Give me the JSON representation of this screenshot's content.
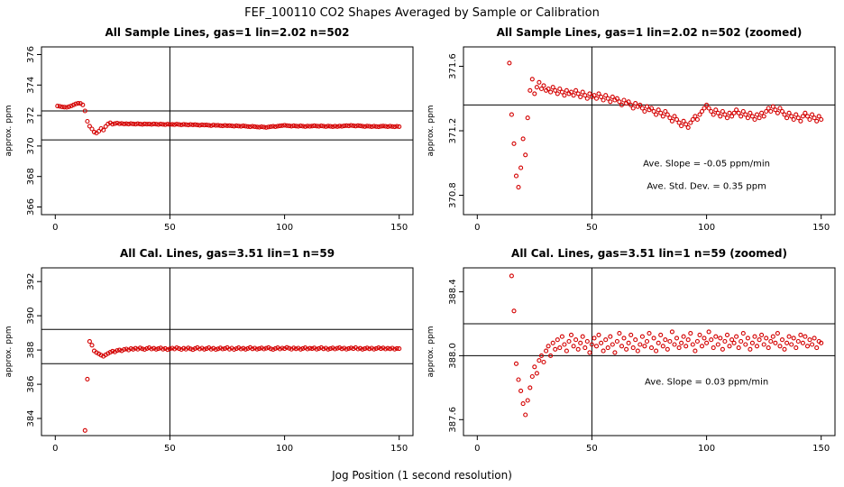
{
  "page": {
    "title": "FEF_100110  CO2 Shapes Averaged by Sample or Calibration",
    "xlabel": "Jog Position (1 second resolution)"
  },
  "marker_color": "#d40000",
  "axis_color": "#000000",
  "chart_data": [
    {
      "type": "scatter",
      "title": "All Sample Lines, gas=1 lin=2.02 n=502",
      "ylabel": "approx. ppm",
      "series_ref": "sample",
      "xlim": [
        -6,
        156
      ],
      "ylim": [
        365.5,
        376.5
      ],
      "xticks": [
        0,
        50,
        100,
        150
      ],
      "xtick_labels": [
        "0",
        "50",
        "100",
        "150"
      ],
      "yticks": [
        366,
        368,
        370,
        372,
        374,
        376
      ],
      "ytick_labels": [
        "366",
        "368",
        "370",
        "372",
        "374",
        "376"
      ],
      "hlines": [
        372.3,
        370.4
      ],
      "vlines": [
        50
      ],
      "annotations": []
    },
    {
      "type": "scatter",
      "title": "All Sample Lines, gas=1 lin=2.02 n=502 (zoomed)",
      "ylabel": "approx. ppm",
      "series_ref": "sample",
      "xlim": [
        -6,
        156
      ],
      "ylim": [
        370.68,
        371.72
      ],
      "xticks": [
        0,
        50,
        100,
        150
      ],
      "xtick_labels": [
        "0",
        "50",
        "100",
        "150"
      ],
      "yticks": [
        370.8,
        371.2,
        371.6
      ],
      "ytick_labels": [
        "370.8",
        "371.2",
        "371.6"
      ],
      "hlines": [
        371.36
      ],
      "vlines": [
        50
      ],
      "annotations": [
        {
          "text": "Ave. Slope =  -0.05  ppm/min",
          "x": 100,
          "y": 370.98
        },
        {
          "text": "Ave. Std. Dev. =  0.35  ppm",
          "x": 100,
          "y": 370.84
        }
      ]
    },
    {
      "type": "scatter",
      "title": "All Cal. Lines, gas=3.51 lin=1 n=59",
      "ylabel": "approx. ppm",
      "series_ref": "cal",
      "xlim": [
        -6,
        156
      ],
      "ylim": [
        383.0,
        392.8
      ],
      "xticks": [
        0,
        50,
        100,
        150
      ],
      "xtick_labels": [
        "0",
        "50",
        "100",
        "150"
      ],
      "yticks": [
        384,
        386,
        388,
        390,
        392
      ],
      "ytick_labels": [
        "384",
        "386",
        "388",
        "390",
        "392"
      ],
      "hlines": [
        389.2,
        387.2
      ],
      "vlines": [
        50
      ],
      "annotations": []
    },
    {
      "type": "scatter",
      "title": "All Cal. Lines, gas=3.51 lin=1 n=59 (zoomed)",
      "ylabel": "approx. ppm",
      "series_ref": "cal",
      "xlim": [
        -6,
        156
      ],
      "ylim": [
        387.5,
        388.55
      ],
      "xticks": [
        0,
        50,
        100,
        150
      ],
      "xtick_labels": [
        "0",
        "50",
        "100",
        "150"
      ],
      "yticks": [
        387.6,
        388.0,
        388.4
      ],
      "ytick_labels": [
        "387.6",
        "388.0",
        "388.4"
      ],
      "hlines": [
        388.2,
        388.0
      ],
      "vlines": [
        50
      ],
      "annotations": [
        {
          "text": "Ave. Slope =  0.03  ppm/min",
          "x": 100,
          "y": 387.82
        }
      ]
    }
  ],
  "series": {
    "sample": {
      "name": "sample-co2-average",
      "x_start": 1,
      "x_step": 1,
      "y": [
        372.62,
        372.6,
        372.57,
        372.55,
        372.54,
        372.58,
        372.63,
        372.7,
        372.76,
        372.8,
        372.79,
        372.7,
        372.3,
        371.62,
        371.3,
        371.12,
        370.92,
        370.85,
        370.97,
        371.15,
        371.05,
        371.28,
        371.45,
        371.52,
        371.43,
        371.47,
        371.5,
        371.46,
        371.48,
        371.45,
        371.46,
        371.44,
        371.47,
        371.45,
        371.43,
        371.46,
        371.44,
        371.42,
        371.45,
        371.43,
        371.44,
        371.42,
        371.45,
        371.43,
        371.41,
        371.44,
        371.42,
        371.4,
        371.43,
        371.41,
        371.42,
        371.4,
        371.43,
        371.41,
        371.39,
        371.42,
        371.4,
        371.38,
        371.41,
        371.39,
        371.4,
        371.38,
        371.36,
        371.39,
        371.37,
        371.38,
        371.36,
        371.34,
        371.37,
        371.35,
        371.36,
        371.34,
        371.32,
        371.35,
        371.33,
        371.34,
        371.32,
        371.3,
        371.33,
        371.31,
        371.29,
        371.32,
        371.3,
        371.28,
        371.26,
        371.29,
        371.27,
        371.25,
        371.23,
        371.26,
        371.24,
        371.22,
        371.25,
        371.27,
        371.29,
        371.27,
        371.3,
        371.32,
        371.34,
        371.36,
        371.34,
        371.32,
        371.3,
        371.33,
        371.31,
        371.29,
        371.32,
        371.3,
        371.28,
        371.31,
        371.29,
        371.31,
        371.33,
        371.31,
        371.29,
        371.32,
        371.3,
        371.28,
        371.31,
        371.29,
        371.27,
        371.3,
        371.28,
        371.31,
        371.29,
        371.32,
        371.34,
        371.32,
        371.35,
        371.33,
        371.31,
        371.34,
        371.32,
        371.3,
        371.28,
        371.31,
        371.29,
        371.27,
        371.3,
        371.28,
        371.26,
        371.29,
        371.31,
        371.29,
        371.27,
        371.3,
        371.28,
        371.26,
        371.29,
        371.27
      ]
    },
    "cal": {
      "name": "cal-co2-average",
      "x_start": 13,
      "x_step": 1,
      "y": [
        383.3,
        386.3,
        388.5,
        388.28,
        387.95,
        387.85,
        387.78,
        387.7,
        387.63,
        387.72,
        387.8,
        387.87,
        387.93,
        387.89,
        387.97,
        388.0,
        387.96,
        388.03,
        388.06,
        388.0,
        388.08,
        388.04,
        388.1,
        388.05,
        388.12,
        388.07,
        388.03,
        388.09,
        388.13,
        388.06,
        388.1,
        388.04,
        388.08,
        388.12,
        388.05,
        388.09,
        388.02,
        388.07,
        388.11,
        388.06,
        388.13,
        388.08,
        388.03,
        388.1,
        388.05,
        388.12,
        388.07,
        388.02,
        388.09,
        388.14,
        388.06,
        388.11,
        388.04,
        388.08,
        388.13,
        388.05,
        388.1,
        388.03,
        388.07,
        388.12,
        388.06,
        388.09,
        388.14,
        388.05,
        388.11,
        388.03,
        388.08,
        388.13,
        388.06,
        388.1,
        388.04,
        388.09,
        388.15,
        388.07,
        388.11,
        388.05,
        388.08,
        388.12,
        388.06,
        388.1,
        388.14,
        388.07,
        388.03,
        388.09,
        388.13,
        388.06,
        388.11,
        388.08,
        388.15,
        388.1,
        388.05,
        388.12,
        388.07,
        388.11,
        388.04,
        388.09,
        388.13,
        388.06,
        388.1,
        388.08,
        388.12,
        388.05,
        388.09,
        388.14,
        388.07,
        388.11,
        388.04,
        388.08,
        388.12,
        388.06,
        388.1,
        388.13,
        388.07,
        388.11,
        388.05,
        388.09,
        388.12,
        388.08,
        388.14,
        388.06,
        388.1,
        388.04,
        388.08,
        388.12,
        388.07,
        388.11,
        388.05,
        388.09,
        388.13,
        388.08,
        388.12,
        388.06,
        388.1,
        388.07,
        388.11,
        388.05,
        388.09,
        388.08
      ]
    }
  }
}
